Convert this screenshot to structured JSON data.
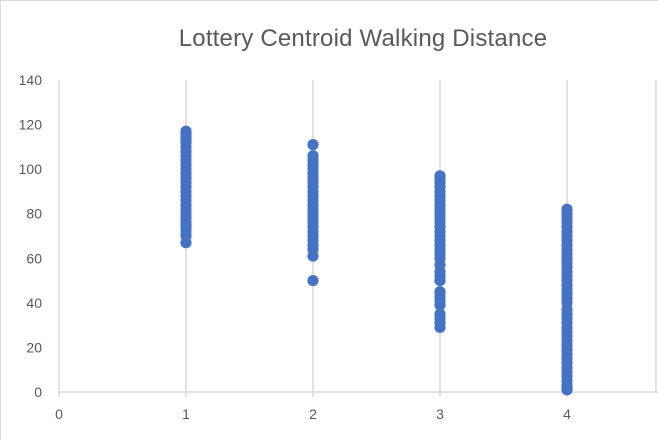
{
  "chart_data": {
    "type": "scatter",
    "title": "Lottery Centroid Walking Distance",
    "xlabel": "",
    "ylabel": "",
    "xlim": [
      0,
      4.7
    ],
    "ylim": [
      0,
      140
    ],
    "x_ticks": [
      "0",
      "1",
      "2",
      "3",
      "4"
    ],
    "y_ticks": [
      "0",
      "20",
      "40",
      "60",
      "80",
      "100",
      "120",
      "140"
    ],
    "grid": {
      "vertical": true,
      "horizontal": false
    },
    "legend": "none",
    "marker_color": "#4472c4",
    "grid_color": "#d9d9d9",
    "series": [
      {
        "x": 1,
        "values": [
          67,
          70,
          72,
          74,
          75,
          76,
          78,
          80,
          82,
          84,
          86,
          88,
          90,
          92,
          94,
          96,
          98,
          100,
          102,
          104,
          106,
          108,
          110,
          112,
          113,
          114,
          115,
          116,
          117
        ]
      },
      {
        "x": 2,
        "values": [
          50,
          61,
          64,
          66,
          68,
          70,
          72,
          74,
          76,
          78,
          80,
          82,
          84,
          86,
          88,
          90,
          92,
          94,
          96,
          98,
          100,
          102,
          104,
          106,
          111
        ]
      },
      {
        "x": 3,
        "values": [
          29,
          31,
          33,
          35,
          39,
          41,
          43,
          45,
          50,
          52,
          54,
          57,
          60,
          62,
          64,
          66,
          68,
          70,
          72,
          74,
          76,
          78,
          80,
          82,
          84,
          86,
          88,
          90,
          92,
          94,
          96,
          97
        ]
      },
      {
        "x": 4,
        "values": [
          1,
          2,
          3,
          5,
          7,
          9,
          11,
          13,
          15,
          17,
          19,
          21,
          23,
          25,
          27,
          29,
          31,
          33,
          35,
          37,
          40,
          42,
          44,
          46,
          48,
          50,
          52,
          54,
          56,
          58,
          60,
          62,
          64,
          66,
          68,
          70,
          72,
          74,
          76,
          78,
          80,
          82
        ]
      }
    ]
  }
}
